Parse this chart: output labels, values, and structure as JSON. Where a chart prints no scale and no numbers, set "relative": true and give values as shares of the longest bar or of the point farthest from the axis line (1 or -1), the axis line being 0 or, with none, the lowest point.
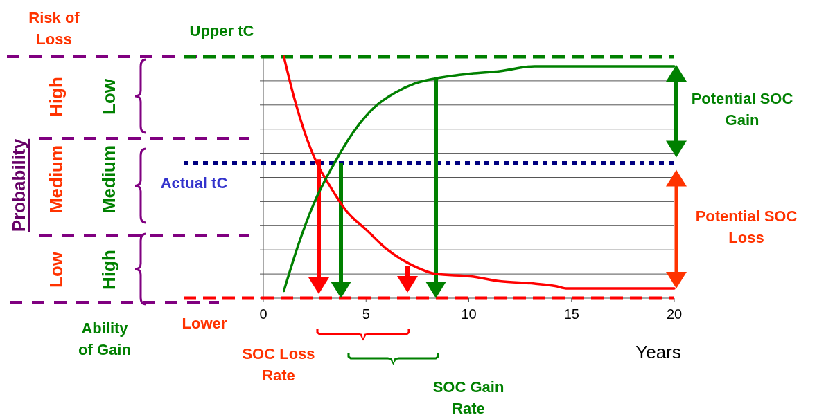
{
  "chart_data": {
    "type": "line",
    "relative": true,
    "xlabel": "Years",
    "xlim": [
      0,
      20
    ],
    "xticks": [
      0,
      5,
      10,
      15,
      20
    ],
    "grid": "y",
    "legend": false,
    "marker": "none",
    "line_style": "solid",
    "series": [
      {
        "color": "#ff0000",
        "x": [
          1.0,
          1.5,
          2.0,
          2.6,
          3.2,
          4.05,
          5.05,
          6.05,
          7.4,
          8.4,
          10.1,
          11.5,
          13.2,
          14.2,
          14.8,
          16.9,
          20
        ],
        "values": [
          1.0,
          0.83,
          0.69,
          0.56,
          0.47,
          0.36,
          0.28,
          0.2,
          0.13,
          0.1,
          0.09,
          0.07,
          0.06,
          0.05,
          0.04,
          0.04,
          0.04
        ]
      },
      {
        "color": "#008000",
        "x": [
          1.0,
          1.7,
          2.5,
          3.4,
          4.4,
          5.4,
          6.4,
          7.4,
          8.4,
          10.1,
          11.5,
          13.2,
          14.8,
          20
        ],
        "values": [
          0.03,
          0.22,
          0.4,
          0.55,
          0.69,
          0.79,
          0.85,
          0.89,
          0.91,
          0.93,
          0.94,
          0.96,
          0.96,
          0.96
        ]
      }
    ],
    "ref_lines": [
      {
        "axis": "y",
        "value": 1,
        "label": "Upper tC",
        "color": "#008000",
        "line_style": "dashed"
      },
      {
        "axis": "y",
        "value": 0.56,
        "label": "Actual tC",
        "color": "#000080",
        "line_style": "dotted"
      },
      {
        "axis": "y",
        "value": 0,
        "label": "Lower",
        "color": "#ff0000",
        "line_style": "dashed"
      }
    ],
    "annotations": [
      "Risk of Loss",
      "Ability of Gain",
      "Probability",
      "High",
      "Medium",
      "Low",
      "Low",
      "Medium",
      "High",
      "SOC Loss Rate",
      "SOC Gain Rate",
      "Potential SOC Gain",
      "Potential SOC Loss"
    ]
  }
}
